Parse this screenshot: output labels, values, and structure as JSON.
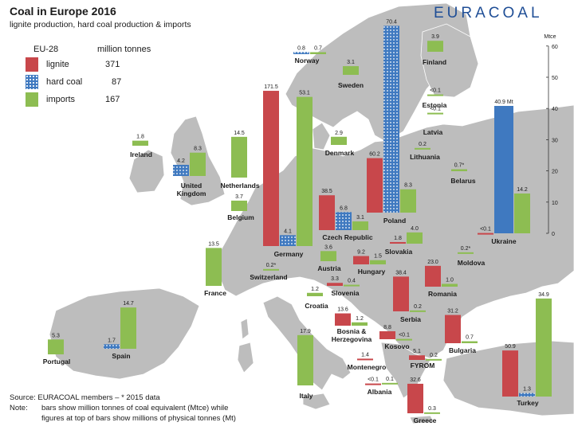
{
  "header": {
    "title": "Coal in Europe 2016",
    "subtitle": "lignite production, hard coal production & imports",
    "brand": "EURACOAL"
  },
  "legend": {
    "heading": "EU-28",
    "unit": "million tonnes",
    "items": [
      {
        "label": "lignite",
        "value": "371"
      },
      {
        "label": "hard coal",
        "value": "87"
      },
      {
        "label": "imports",
        "value": "167"
      }
    ]
  },
  "colors": {
    "lignite": "#c8474b",
    "hard_coal": "#3f79c0",
    "imports": "#8dbd52",
    "land": "#b9b9b9",
    "sea": "#ffffff"
  },
  "footer": {
    "source": "Source: EURACOAL members  –  * 2015 data",
    "note_label": "Note:",
    "note_line1": "bars show million tonnes of coal equivalent (Mtce) while",
    "note_line2": "figures at top of bars show millions of physical tonnes (Mt)"
  },
  "chart_data": {
    "type": "bar",
    "unit_label": "Mtce",
    "ylim": [
      0,
      60
    ],
    "yticks": [
      "0",
      "10",
      "20",
      "30",
      "40",
      "50",
      "60"
    ],
    "annotation_unit": "Mt",
    "countries": [
      {
        "name": "Norway",
        "bars": [
          {
            "type": "hard_coal",
            "label": "0.8"
          },
          {
            "type": "imports",
            "label": "0.7"
          }
        ]
      },
      {
        "name": "Finland",
        "bars": [
          {
            "type": "imports",
            "label": "3.9"
          }
        ]
      },
      {
        "name": "Sweden",
        "bars": [
          {
            "type": "imports",
            "label": "3.1"
          }
        ]
      },
      {
        "name": "Estonia",
        "bars": [
          {
            "type": "imports",
            "label": "<0.1"
          }
        ]
      },
      {
        "name": "Latvia",
        "bars": [
          {
            "type": "imports",
            "label": "<0.1"
          }
        ]
      },
      {
        "name": "Lithuania",
        "bars": [
          {
            "type": "imports",
            "label": "0.2"
          }
        ]
      },
      {
        "name": "Belarus",
        "bars": [
          {
            "type": "imports",
            "label": "0.7*"
          }
        ]
      },
      {
        "name": "Ireland",
        "bars": [
          {
            "type": "imports",
            "label": "1.8"
          }
        ]
      },
      {
        "name": "Denmark",
        "bars": [
          {
            "type": "imports",
            "label": "2.9"
          }
        ]
      },
      {
        "name": "United Kingdom",
        "bars": [
          {
            "type": "hard_coal",
            "label": "4.2"
          },
          {
            "type": "imports",
            "label": "8.3"
          }
        ]
      },
      {
        "name": "Netherlands",
        "bars": [
          {
            "type": "imports",
            "label": "14.5"
          }
        ]
      },
      {
        "name": "Belgium",
        "bars": [
          {
            "type": "imports",
            "label": "3.7"
          }
        ]
      },
      {
        "name": "Germany",
        "bars": [
          {
            "type": "lignite",
            "label": "171.5"
          },
          {
            "type": "hard_coal",
            "label": "4.1"
          },
          {
            "type": "imports",
            "label": "53.1"
          }
        ]
      },
      {
        "name": "Poland",
        "bars": [
          {
            "type": "lignite",
            "label": "60.2"
          },
          {
            "type": "hard_coal",
            "label": "70.4"
          },
          {
            "type": "imports",
            "label": "8.3"
          }
        ]
      },
      {
        "name": "Czech Republic",
        "bars": [
          {
            "type": "lignite",
            "label": "38.5"
          },
          {
            "type": "hard_coal",
            "label": "6.8"
          },
          {
            "type": "imports",
            "label": "3.1"
          }
        ]
      },
      {
        "name": "Slovakia",
        "bars": [
          {
            "type": "lignite",
            "label": "1.8"
          },
          {
            "type": "imports",
            "label": "4.0"
          }
        ]
      },
      {
        "name": "Ukraine",
        "bars": [
          {
            "type": "lignite",
            "label": "<0.1"
          },
          {
            "type": "hard_coal",
            "label": "40.9 Mt"
          },
          {
            "type": "imports",
            "label": "14.2"
          }
        ]
      },
      {
        "name": "Switzerland",
        "bars": [
          {
            "type": "imports",
            "label": "0.2*"
          }
        ]
      },
      {
        "name": "France",
        "bars": [
          {
            "type": "imports",
            "label": "13.5"
          }
        ]
      },
      {
        "name": "Austria",
        "bars": [
          {
            "type": "imports",
            "label": "3.6"
          }
        ]
      },
      {
        "name": "Hungary",
        "bars": [
          {
            "type": "lignite",
            "label": "9.2"
          },
          {
            "type": "imports",
            "label": "1.5"
          }
        ]
      },
      {
        "name": "Slovenia",
        "bars": [
          {
            "type": "lignite",
            "label": "3.3"
          },
          {
            "type": "imports",
            "label": "0.4"
          }
        ]
      },
      {
        "name": "Romania",
        "bars": [
          {
            "type": "lignite",
            "label": "23.0"
          },
          {
            "type": "imports",
            "label": "1.0"
          }
        ]
      },
      {
        "name": "Moldova",
        "bars": [
          {
            "type": "imports",
            "label": "0.2*"
          }
        ]
      },
      {
        "name": "Croatia",
        "bars": [
          {
            "type": "imports",
            "label": "1.2"
          }
        ]
      },
      {
        "name": "Serbia",
        "bars": [
          {
            "type": "lignite",
            "label": "38.4"
          },
          {
            "type": "imports",
            "label": "0.2"
          }
        ]
      },
      {
        "name": "Bosnia & Herzegovina",
        "bars": [
          {
            "type": "lignite",
            "label": "13.6"
          },
          {
            "type": "imports",
            "label": "1.2"
          }
        ]
      },
      {
        "name": "Kosovo",
        "bars": [
          {
            "type": "lignite",
            "label": "8.8"
          },
          {
            "type": "imports",
            "label": "<0.1"
          }
        ]
      },
      {
        "name": "Bulgaria",
        "bars": [
          {
            "type": "lignite",
            "label": "31.2"
          },
          {
            "type": "imports",
            "label": "0.7"
          }
        ]
      },
      {
        "name": "Montenegro",
        "bars": [
          {
            "type": "lignite",
            "label": "1.4"
          }
        ]
      },
      {
        "name": "FYROM",
        "bars": [
          {
            "type": "lignite",
            "label": "5.1"
          },
          {
            "type": "imports",
            "label": "0.2"
          }
        ]
      },
      {
        "name": "Albania",
        "bars": [
          {
            "type": "lignite",
            "label": "<0.1"
          },
          {
            "type": "imports",
            "label": "0.1"
          }
        ]
      },
      {
        "name": "Greece",
        "bars": [
          {
            "type": "lignite",
            "label": "32.6"
          },
          {
            "type": "imports",
            "label": "0.3"
          }
        ]
      },
      {
        "name": "Turkey",
        "bars": [
          {
            "type": "lignite",
            "label": "50.9"
          },
          {
            "type": "hard_coal",
            "label": "1.3"
          },
          {
            "type": "imports",
            "label": "34.9"
          }
        ]
      },
      {
        "name": "Portugal",
        "bars": [
          {
            "type": "imports",
            "label": "5.3"
          }
        ]
      },
      {
        "name": "Spain",
        "bars": [
          {
            "type": "hard_coal",
            "label": "1.7"
          },
          {
            "type": "imports",
            "label": "14.7"
          }
        ]
      },
      {
        "name": "Italy",
        "bars": [
          {
            "type": "imports",
            "label": "17.9"
          }
        ]
      }
    ]
  }
}
